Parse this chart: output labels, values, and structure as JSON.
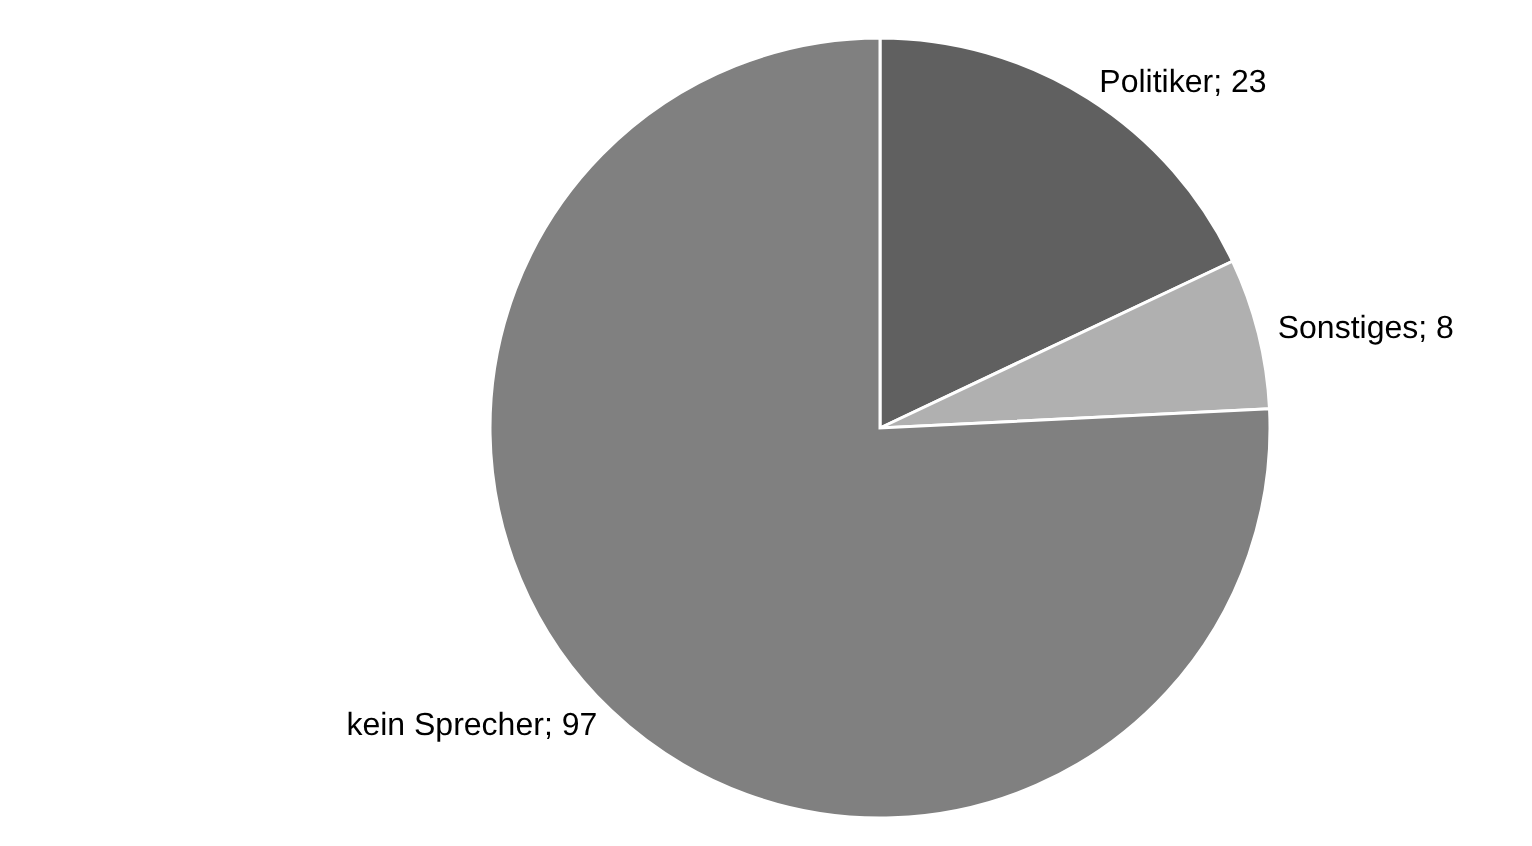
{
  "chart_data": {
    "type": "pie",
    "categories": [
      "Politiker",
      "Sonstiges",
      "kein Sprecher"
    ],
    "values": [
      23,
      8,
      97
    ],
    "colors": [
      "#606060",
      "#b0b0b0",
      "#808080"
    ],
    "value_labels": [
      "; 23",
      "; 8",
      "; 97"
    ]
  }
}
